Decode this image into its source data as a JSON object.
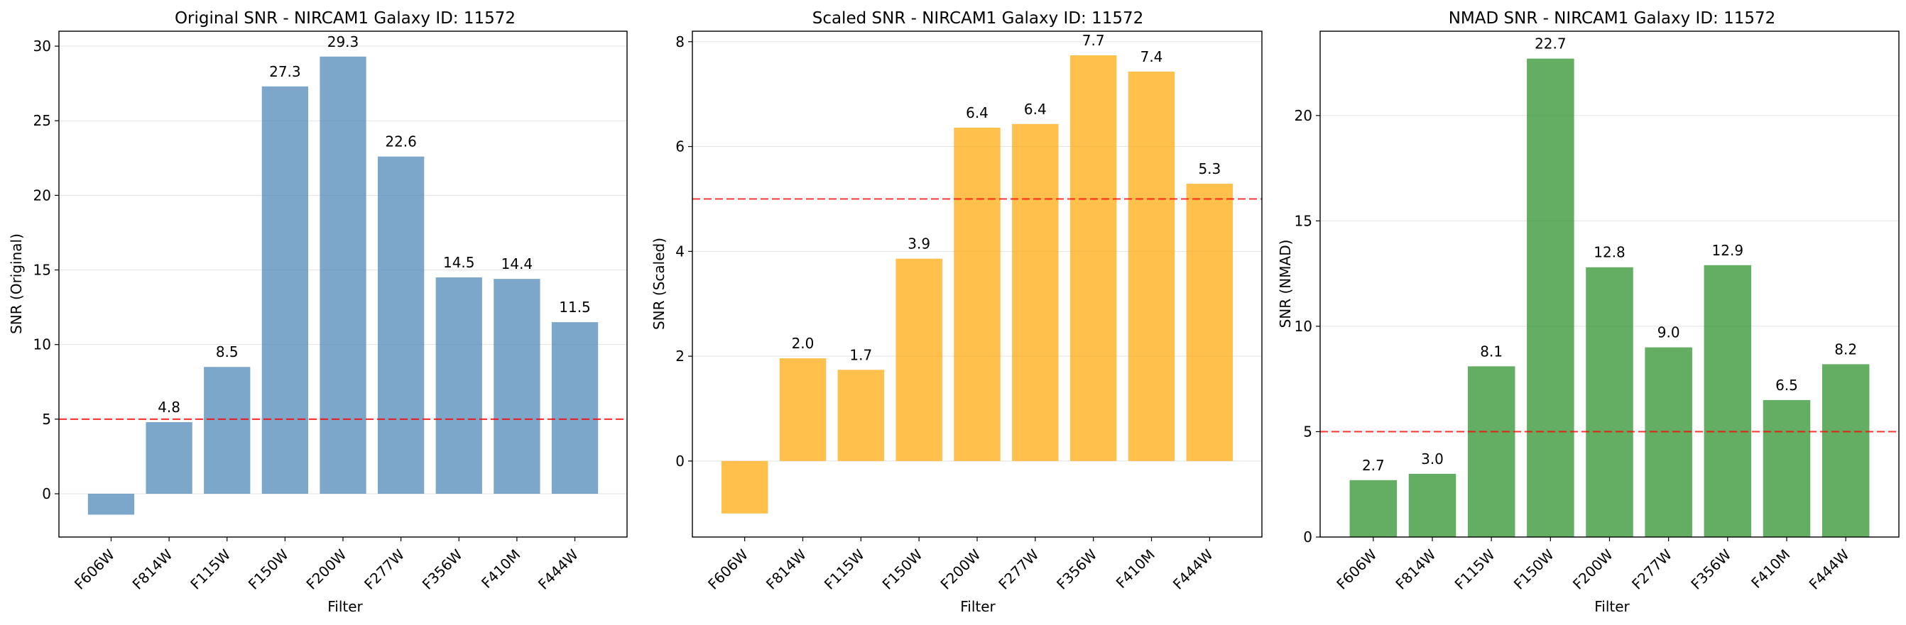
{
  "chart_data": [
    {
      "type": "bar",
      "title": "Original SNR - NIRCAM1 Galaxy ID: 11572",
      "xlabel": "Filter",
      "ylabel": "SNR (Original)",
      "categories": [
        "F606W",
        "F814W",
        "F115W",
        "F150W",
        "F200W",
        "F277W",
        "F356W",
        "F410M",
        "F444W"
      ],
      "values": [
        -1.4,
        4.8,
        8.5,
        27.3,
        29.3,
        22.6,
        14.5,
        14.4,
        11.5
      ],
      "value_labels": [
        "",
        "4.8",
        "8.5",
        "27.3",
        "29.3",
        "22.6",
        "14.5",
        "14.4",
        "11.5"
      ],
      "ylim": [
        -2.9,
        31
      ],
      "yticks": [
        0,
        5,
        10,
        15,
        20,
        25,
        30
      ],
      "threshold": 5,
      "bar_color": "#4682b4",
      "threshold_color": "#ff0000",
      "grid": "horizontal"
    },
    {
      "type": "bar",
      "title": "Scaled SNR - NIRCAM1 Galaxy ID: 11572",
      "xlabel": "Filter",
      "ylabel": "SNR (Scaled)",
      "categories": [
        "F606W",
        "F814W",
        "F115W",
        "F150W",
        "F200W",
        "F277W",
        "F356W",
        "F410M",
        "F444W"
      ],
      "values": [
        -1.0,
        1.96,
        1.74,
        3.86,
        6.36,
        6.43,
        7.74,
        7.43,
        5.29
      ],
      "value_labels": [
        "",
        "2.0",
        "1.7",
        "3.9",
        "6.4",
        "6.4",
        "7.7",
        "7.4",
        "5.3"
      ],
      "ylim": [
        -1.45,
        8.2
      ],
      "yticks": [
        0,
        2,
        4,
        6,
        8
      ],
      "threshold": 5,
      "bar_color": "#ffa500",
      "threshold_color": "#ff0000",
      "grid": "horizontal"
    },
    {
      "type": "bar",
      "title": "NMAD SNR - NIRCAM1 Galaxy ID: 11572",
      "xlabel": "Filter",
      "ylabel": "SNR (NMAD)",
      "categories": [
        "F606W",
        "F814W",
        "F115W",
        "F150W",
        "F200W",
        "F277W",
        "F356W",
        "F410M",
        "F444W"
      ],
      "values": [
        2.7,
        3.0,
        8.1,
        22.7,
        12.8,
        9.0,
        12.9,
        6.5,
        8.2
      ],
      "value_labels": [
        "2.7",
        "3.0",
        "8.1",
        "22.7",
        "12.8",
        "9.0",
        "12.9",
        "6.5",
        "8.2"
      ],
      "ylim": [
        0,
        24
      ],
      "yticks": [
        0,
        5,
        10,
        15,
        20
      ],
      "threshold": 5,
      "bar_color": "#228b22",
      "threshold_color": "#ff0000",
      "grid": "horizontal"
    }
  ]
}
